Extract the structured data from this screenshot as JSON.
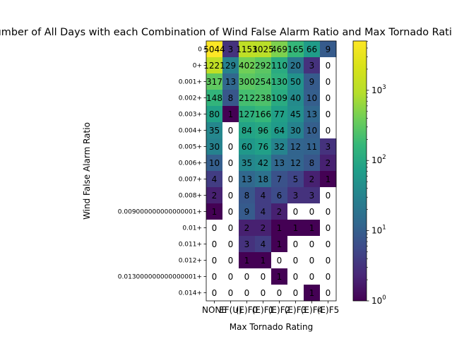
{
  "chart_data": {
    "type": "heatmap",
    "title": "Number of All Days with each Combination of Wind False Alarm Ratio and Max Tornado Rating",
    "xlabel": "Max Tornado Rating",
    "ylabel": "Wind False Alarm Ratio",
    "x_categories": [
      "NONE",
      "EF(U)",
      "EF0",
      "EF1",
      "EF2",
      "EF3",
      "EF4",
      "EF5"
    ],
    "x_tick_text": [
      "NONE",
      "EF(U)",
      "(E)F0",
      "(E)F1",
      "(E)F2",
      "(E)F3",
      "(E)F4",
      "(E)F5"
    ],
    "y_categories": [
      "0",
      "0+",
      "0.001+",
      "0.002+",
      "0.003+",
      "0.004+",
      "0.005+",
      "0.006+",
      "0.007+",
      "0.008+",
      "0.009000000000000001+",
      "0.01+",
      "0.011+",
      "0.012+",
      "0.013000000000000001+",
      "0.014+"
    ],
    "values": [
      [
        5044,
        3,
        1153,
        1025,
        469,
        165,
        66,
        9
      ],
      [
        1221,
        29,
        402,
        292,
        110,
        20,
        3,
        0
      ],
      [
        317,
        13,
        300,
        254,
        130,
        50,
        9,
        0
      ],
      [
        148,
        8,
        212,
        238,
        109,
        40,
        10,
        0
      ],
      [
        80,
        1,
        127,
        166,
        77,
        45,
        13,
        0
      ],
      [
        35,
        0,
        84,
        96,
        64,
        30,
        10,
        0
      ],
      [
        30,
        0,
        60,
        76,
        32,
        12,
        11,
        3
      ],
      [
        10,
        0,
        35,
        42,
        13,
        12,
        8,
        2
      ],
      [
        4,
        0,
        13,
        18,
        7,
        5,
        2,
        1
      ],
      [
        2,
        0,
        8,
        4,
        6,
        3,
        3,
        0
      ],
      [
        1,
        0,
        9,
        4,
        2,
        0,
        0,
        0
      ],
      [
        0,
        0,
        2,
        2,
        1,
        1,
        1,
        0
      ],
      [
        0,
        0,
        3,
        4,
        1,
        0,
        0,
        0
      ],
      [
        0,
        0,
        1,
        1,
        0,
        0,
        0,
        0
      ],
      [
        0,
        0,
        0,
        0,
        1,
        0,
        0,
        0
      ],
      [
        0,
        0,
        0,
        0,
        0,
        0,
        1,
        0
      ]
    ],
    "color_scale": {
      "type": "log",
      "colormap": "viridis",
      "vmin": 1,
      "vmax": 5044,
      "zero_color": "#ffffff",
      "tick_values": [
        1,
        10,
        100,
        1000
      ],
      "tick_labels": [
        {
          "base": "10",
          "exp": "0"
        },
        {
          "base": "10",
          "exp": "1"
        },
        {
          "base": "10",
          "exp": "2"
        },
        {
          "base": "10",
          "exp": "3"
        }
      ]
    },
    "grid": false
  }
}
